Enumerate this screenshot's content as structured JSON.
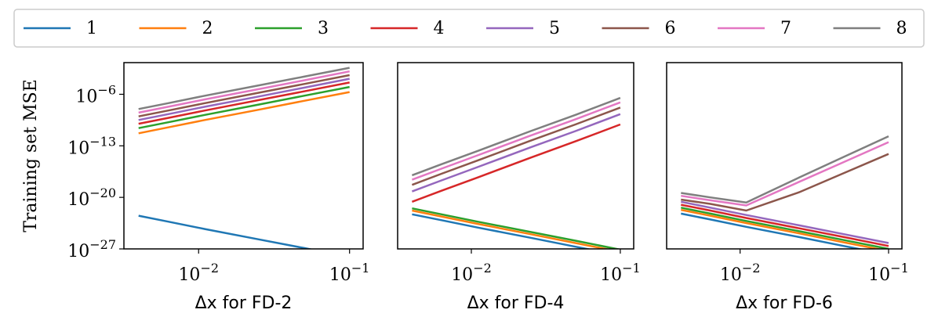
{
  "chart_data": [
    {
      "type": "line",
      "xlabel": "Δx for FD-2",
      "ylabel": "Training set MSE",
      "xscale": "log",
      "yscale": "log",
      "legend": "top",
      "xlim": [
        0.0032,
        0.123
      ],
      "ylim": [
        1e-27,
        0.02
      ],
      "xticks": [
        {
          "value": 0.01,
          "label": "10−2"
        },
        {
          "value": 0.1,
          "label": "10−1"
        }
      ],
      "yticks": [
        {
          "value": 1e-06,
          "label": "10−6"
        },
        {
          "value": 1e-13,
          "label": "10−13"
        },
        {
          "value": 1e-20,
          "label": "10−20"
        },
        {
          "value": 1e-27,
          "label": "10−27"
        }
      ],
      "x": [
        0.004,
        0.0063,
        0.011,
        0.025,
        0.05,
        0.1
      ],
      "series": [
        {
          "name": "1",
          "color": "#1f77b4",
          "values": [
            3.2e-23,
            5e-24,
            5e-25,
            2e-26,
            1.3e-27,
            7.9e-29
          ]
        },
        {
          "name": "2",
          "color": "#ff7f0e",
          "values": [
            5e-12,
            3.2e-11,
            3.2e-10,
            7.9e-09,
            1.3e-07,
            2e-06
          ]
        },
        {
          "name": "3",
          "color": "#2ca02c",
          "values": [
            2.5e-11,
            1.6e-10,
            1.6e-09,
            4e-08,
            6.3e-07,
            1e-05
          ]
        },
        {
          "name": "4",
          "color": "#d62728",
          "values": [
            1e-10,
            6.3e-10,
            6.3e-09,
            1.6e-07,
            2.5e-06,
            4e-05
          ]
        },
        {
          "name": "5",
          "color": "#9467bd",
          "values": [
            3.2e-10,
            2e-09,
            2e-08,
            5e-07,
            7.9e-06,
            0.00013
          ]
        },
        {
          "name": "6",
          "color": "#8c564b",
          "values": [
            1e-09,
            6.3e-09,
            6.3e-08,
            1.6e-06,
            2.5e-05,
            0.0004
          ]
        },
        {
          "name": "7",
          "color": "#e377c2",
          "values": [
            3.2e-09,
            2e-08,
            2e-07,
            5e-06,
            7.9e-05,
            0.0013
          ]
        },
        {
          "name": "8",
          "color": "#7f7f7f",
          "values": [
            1e-08,
            6.3e-08,
            6.3e-07,
            1.6e-05,
            0.00025,
            0.004
          ]
        }
      ]
    },
    {
      "type": "line",
      "xlabel": "Δx for FD-4",
      "xscale": "log",
      "yscale": "log",
      "xlim": [
        0.0032,
        0.123
      ],
      "ylim": [
        1e-27,
        0.02
      ],
      "xticks": [
        {
          "value": 0.01,
          "label": "10−2"
        },
        {
          "value": 0.1,
          "label": "10−1"
        }
      ],
      "x": [
        0.004,
        0.0063,
        0.011,
        0.025,
        0.05,
        0.1
      ],
      "series": [
        {
          "name": "1",
          "color": "#1f77b4",
          "values": [
            5e-23,
            7.9e-24,
            7.9e-25,
            3.2e-26,
            2e-27,
            1.3e-28
          ]
        },
        {
          "name": "2",
          "color": "#ff7f0e",
          "values": [
            1.6e-22,
            2.5e-23,
            2.5e-24,
            1e-25,
            6.3e-27,
            4e-28
          ]
        },
        {
          "name": "3",
          "color": "#2ca02c",
          "values": [
            3.2e-22,
            5e-23,
            5e-24,
            2e-25,
            1.3e-26,
            7.9e-28
          ]
        },
        {
          "name": "4",
          "color": "#d62728",
          "values": [
            2.5e-21,
            7.9e-20,
            5e-18,
            2.5e-15,
            4e-13,
            7.9e-11
          ]
        },
        {
          "name": "5",
          "color": "#9467bd",
          "values": [
            6.3e-20,
            2e-18,
            1.3e-16,
            6.3e-14,
            1e-11,
            2e-09
          ]
        },
        {
          "name": "6",
          "color": "#8c564b",
          "values": [
            5e-19,
            1.6e-17,
            1e-15,
            5e-13,
            7.9e-11,
            1.6e-08
          ]
        },
        {
          "name": "7",
          "color": "#e377c2",
          "values": [
            2.5e-18,
            7.9e-17,
            5e-15,
            2.5e-12,
            4e-10,
            7.9e-08
          ]
        },
        {
          "name": "8",
          "color": "#7f7f7f",
          "values": [
            1e-17,
            3.2e-16,
            2e-14,
            1e-11,
            1.6e-09,
            3.2e-07
          ]
        }
      ]
    },
    {
      "type": "line",
      "xlabel": "Δx for FD-6",
      "xscale": "log",
      "yscale": "log",
      "xlim": [
        0.0032,
        0.123
      ],
      "ylim": [
        1e-27,
        0.02
      ],
      "xticks": [
        {
          "value": 0.01,
          "label": "10−2"
        },
        {
          "value": 0.1,
          "label": "10−1"
        }
      ],
      "x": [
        0.004,
        0.0063,
        0.011,
        0.025,
        0.05,
        0.1
      ],
      "series": [
        {
          "name": "1",
          "color": "#1f77b4",
          "values": [
            6.3e-23,
            1e-23,
            1e-24,
            4e-26,
            2.5e-27,
            1.6e-28
          ]
        },
        {
          "name": "2",
          "color": "#ff7f0e",
          "values": [
            2e-22,
            3.2e-23,
            3.2e-24,
            1.3e-25,
            7.9e-27,
            5e-28
          ]
        },
        {
          "name": "3",
          "color": "#2ca02c",
          "values": [
            4e-22,
            6.3e-23,
            6.3e-24,
            2.5e-25,
            1.6e-26,
            1e-27
          ]
        },
        {
          "name": "4",
          "color": "#d62728",
          "values": [
            1e-21,
            1.6e-22,
            1.6e-23,
            6.3e-25,
            4e-26,
            2.5e-27
          ]
        },
        {
          "name": "5",
          "color": "#9467bd",
          "values": [
            2.5e-21,
            4e-22,
            4e-23,
            1.6e-24,
            1e-25,
            6.3e-27
          ]
        },
        {
          "name": "6",
          "color": "#8c564b",
          "values": [
            5e-21,
            1.3e-21,
            1.6e-22,
            5e-20,
            2e-17,
            7.9e-15
          ]
        },
        {
          "name": "7",
          "color": "#e377c2",
          "values": [
            1.6e-20,
            4e-21,
            7.9e-22,
            1.3e-18,
            6.3e-16,
            3.2e-13
          ]
        },
        {
          "name": "8",
          "color": "#7f7f7f",
          "values": [
            4e-20,
            1e-20,
            2e-21,
            5e-18,
            3.2e-15,
            2e-12
          ]
        }
      ]
    }
  ]
}
